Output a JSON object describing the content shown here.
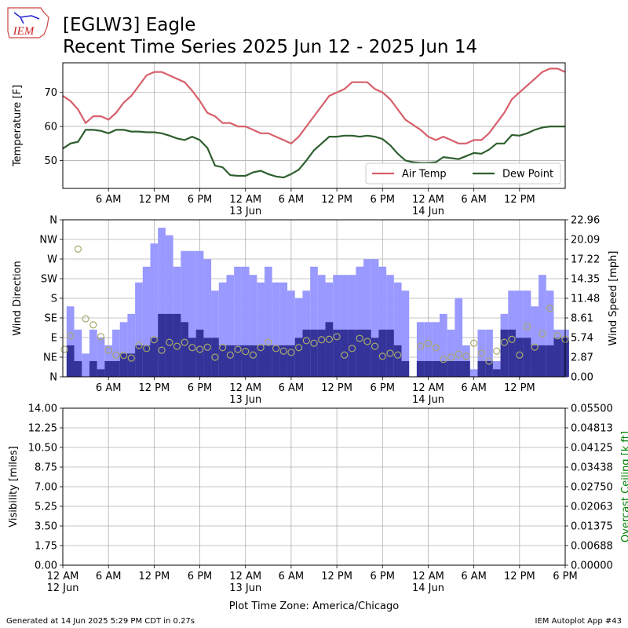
{
  "header": {
    "logo": "IEM",
    "title": "[EGLW3] Eagle",
    "subtitle": "Recent Time Series 2025 Jun 12 - 2025 Jun 14"
  },
  "chart_data": [
    {
      "type": "line",
      "ylabel": "Temperature [F]",
      "xlim": [
        0,
        66
      ],
      "xticks": [
        {
          "value": 6,
          "label": "6 AM"
        },
        {
          "value": 12,
          "label": "12 PM"
        },
        {
          "value": 18,
          "label": "6 PM"
        },
        {
          "value": 24,
          "label": "12 AM\n13 Jun"
        },
        {
          "value": 30,
          "label": "6 AM"
        },
        {
          "value": 36,
          "label": "12 PM"
        },
        {
          "value": 42,
          "label": "6 PM"
        },
        {
          "value": 48,
          "label": "12 AM\n14 Jun"
        },
        {
          "value": 54,
          "label": "6 AM"
        },
        {
          "value": 60,
          "label": "12 PM"
        }
      ],
      "ylim": [
        41.8,
        78.7
      ],
      "yticks": [
        50,
        60,
        70
      ],
      "grid": true,
      "legend": "lower right",
      "x": [
        0,
        1,
        2,
        3,
        4,
        5,
        6,
        7,
        8,
        9,
        10,
        11,
        12,
        13,
        14,
        15,
        16,
        17,
        18,
        19,
        20,
        21,
        22,
        23,
        24,
        25,
        26,
        27,
        28,
        29,
        30,
        31,
        32,
        33,
        34,
        35,
        36,
        37,
        38,
        39,
        40,
        41,
        42,
        43,
        44,
        45,
        46,
        47,
        48,
        49,
        50,
        51,
        52,
        53,
        54,
        55,
        56,
        57,
        58,
        59,
        60,
        61,
        62,
        63,
        64,
        65,
        66
      ],
      "series": [
        {
          "name": "Air Temp",
          "color": "#d6606b",
          "values": [
            69,
            67.5,
            65,
            61,
            63,
            63,
            62,
            64,
            67,
            69,
            72,
            75,
            76,
            76,
            75,
            74,
            73,
            70.5,
            67.5,
            64,
            63,
            61,
            61,
            60,
            60,
            59,
            58,
            58,
            57,
            56,
            55,
            57,
            60,
            63,
            66,
            69,
            70,
            71,
            73,
            73,
            73,
            71,
            70,
            68,
            65,
            62,
            60.5,
            59,
            57,
            56,
            57,
            56,
            55,
            55,
            56,
            56,
            58,
            61,
            64,
            68,
            70,
            72,
            74,
            76,
            77,
            77,
            76
          ]
        },
        {
          "name": "Dew Point",
          "color": "#2f5f2f",
          "values": [
            53.5,
            55,
            55.5,
            59,
            59,
            58.7,
            58,
            59,
            59,
            58.5,
            58.5,
            58.3,
            58.3,
            58,
            57.3,
            56.5,
            56,
            57,
            56,
            53.7,
            48.5,
            48,
            45.7,
            45.5,
            45.5,
            46.5,
            47,
            46,
            45.3,
            45,
            46,
            47.3,
            50,
            53,
            55,
            57,
            57,
            57.3,
            57.3,
            57,
            57.3,
            57,
            56.3,
            54.5,
            52,
            50,
            49.5,
            49.3,
            49.3,
            49.5,
            51,
            50.7,
            50.4,
            51.3,
            52.2,
            52,
            53.2,
            55,
            55,
            57.5,
            57.3,
            58,
            59,
            59.7,
            60,
            60,
            60
          ]
        }
      ]
    },
    {
      "type": "bar",
      "ylabel": "Wind Direction",
      "y2label": "Wind Speed [mph]",
      "xlim": [
        0,
        66
      ],
      "xticks": [
        {
          "value": 6,
          "label": "6 AM"
        },
        {
          "value": 12,
          "label": "12 PM"
        },
        {
          "value": 18,
          "label": "6 PM"
        },
        {
          "value": 24,
          "label": "12 AM\n13 Jun"
        },
        {
          "value": 30,
          "label": "6 AM"
        },
        {
          "value": 36,
          "label": "12 PM"
        },
        {
          "value": 42,
          "label": "6 PM"
        },
        {
          "value": 48,
          "label": "12 AM\n14 Jun"
        },
        {
          "value": 54,
          "label": "6 AM"
        },
        {
          "value": 60,
          "label": "12 PM"
        }
      ],
      "ylim": [
        0,
        360
      ],
      "yticks": [
        {
          "value": 0,
          "label": "N"
        },
        {
          "value": 45,
          "label": "NE"
        },
        {
          "value": 90,
          "label": "E"
        },
        {
          "value": 135,
          "label": "SE"
        },
        {
          "value": 180,
          "label": "S"
        },
        {
          "value": 225,
          "label": "SW"
        },
        {
          "value": 270,
          "label": "W"
        },
        {
          "value": 315,
          "label": "NW"
        },
        {
          "value": 360,
          "label": "N"
        }
      ],
      "y2lim": [
        0,
        22.96
      ],
      "y2ticks": [
        {
          "value": 0,
          "label": "0.00"
        },
        2.87,
        5.74,
        8.61,
        11.48,
        14.35,
        17.22,
        20.09,
        22.96
      ],
      "grid": true,
      "x": [
        1,
        2,
        3,
        4,
        5,
        6,
        7,
        8,
        9,
        10,
        11,
        12,
        13,
        14,
        15,
        16,
        17,
        18,
        19,
        20,
        21,
        22,
        23,
        24,
        25,
        26,
        27,
        28,
        29,
        30,
        31,
        32,
        33,
        34,
        35,
        36,
        37,
        38,
        39,
        40,
        41,
        42,
        43,
        44,
        45,
        46,
        47,
        48,
        49,
        50,
        51,
        52,
        53,
        54,
        55,
        56,
        57,
        58,
        59,
        60,
        61,
        62,
        63,
        64,
        65,
        66
      ],
      "series": [
        {
          "type": "bar",
          "axis": "y2",
          "color": "#9999ff",
          "values": [
            10.3,
            6.9,
            3.4,
            6.9,
            5.7,
            4.6,
            6.9,
            8.0,
            9.2,
            13.8,
            16.1,
            19.5,
            21.8,
            20.7,
            16.1,
            18.4,
            18.4,
            18.4,
            17.2,
            12.6,
            13.8,
            14.9,
            16.1,
            16.1,
            14.9,
            13.8,
            16.1,
            13.8,
            13.8,
            12.6,
            11.5,
            12.6,
            16.1,
            14.9,
            13.8,
            14.9,
            14.9,
            14.9,
            16.1,
            17.2,
            17.2,
            16.1,
            14.9,
            13.8,
            12.6,
            null,
            8.0,
            8.0,
            8.0,
            9.2,
            6.9,
            11.5,
            4.6,
            1.1,
            6.9,
            6.9,
            2.3,
            9.2,
            12.6,
            12.6,
            12.6,
            10.3,
            14.9,
            12.6,
            6.9,
            6.9
          ]
        },
        {
          "type": "bar",
          "axis": "y2",
          "color": "#333399",
          "values": [
            4.6,
            2.3,
            0,
            2.3,
            1.1,
            2.3,
            2.3,
            3.4,
            3.4,
            4.6,
            4.6,
            5.7,
            9.2,
            9.2,
            9.2,
            8.0,
            5.7,
            6.9,
            5.7,
            5.7,
            4.6,
            4.6,
            4.6,
            4.6,
            4.6,
            4.6,
            4.6,
            4.6,
            4.6,
            4.6,
            5.7,
            6.9,
            6.9,
            6.9,
            8.0,
            6.9,
            6.9,
            6.9,
            6.9,
            6.9,
            5.7,
            6.9,
            6.9,
            4.6,
            2.3,
            null,
            2.3,
            2.3,
            2.3,
            2.3,
            2.3,
            2.3,
            2.3,
            0,
            2.3,
            2.3,
            1.1,
            6.9,
            6.9,
            5.7,
            5.7,
            4.6,
            4.6,
            4.6,
            5.7,
            5.7
          ]
        },
        {
          "type": "scatter",
          "color": "#a8a86c",
          "x": [
            0.2,
            1,
            2,
            3,
            4,
            5,
            6,
            7,
            8,
            9,
            10,
            11,
            12,
            13,
            14,
            15,
            16,
            17,
            18,
            19,
            20,
            21,
            22,
            23,
            24,
            25,
            26,
            27,
            28,
            29,
            30,
            31,
            32,
            33,
            34,
            35,
            36,
            37,
            38,
            39,
            40,
            41,
            42,
            43,
            44,
            47,
            48,
            49,
            50,
            51,
            52,
            53,
            54,
            55,
            56,
            57,
            58,
            59,
            60,
            61,
            62,
            63,
            64,
            65,
            66
          ],
          "values": [
            63,
            94,
            293,
            133,
            119,
            92,
            61,
            50,
            49,
            43,
            72,
            65,
            85,
            61,
            79,
            70,
            79,
            67,
            63,
            68,
            45,
            67,
            50,
            63,
            58,
            50,
            67,
            79,
            65,
            59,
            56,
            67,
            83,
            77,
            85,
            86,
            92,
            50,
            65,
            88,
            81,
            70,
            47,
            54,
            50,
            70,
            77,
            67,
            40,
            45,
            52,
            47,
            77,
            54,
            36,
            59,
            79,
            86,
            50,
            115,
            68,
            99,
            157,
            94,
            86
          ]
        }
      ]
    },
    {
      "type": "line",
      "ylabel": "Visibility [miles]",
      "y2label": "Overcast Ceiling [k ft]",
      "y2label_color": "#008000",
      "xlabel": "Plot Time Zone: America/Chicago",
      "xlim": [
        0,
        66
      ],
      "xticks": [
        {
          "value": 0,
          "label": "12 AM\n12 Jun"
        },
        {
          "value": 6,
          "label": "6 AM"
        },
        {
          "value": 12,
          "label": "12 PM"
        },
        {
          "value": 18,
          "label": "6 PM"
        },
        {
          "value": 24,
          "label": "12 AM\n13 Jun"
        },
        {
          "value": 30,
          "label": "6 AM"
        },
        {
          "value": 36,
          "label": "12 PM"
        },
        {
          "value": 42,
          "label": "6 PM"
        },
        {
          "value": 48,
          "label": "12 AM\n14 Jun"
        },
        {
          "value": 54,
          "label": "6 AM"
        },
        {
          "value": 60,
          "label": "12 PM"
        },
        {
          "value": 66,
          "label": "6 PM"
        }
      ],
      "ylim": [
        0,
        14
      ],
      "yticks": [
        {
          "value": 0,
          "label": "0.00"
        },
        1.75,
        {
          "value": 3.5,
          "label": "3.50"
        },
        5.25,
        {
          "value": 7,
          "label": "7.00"
        },
        8.75,
        {
          "value": 10.5,
          "label": "10.50"
        },
        12.25,
        {
          "value": 14,
          "label": "14.00"
        }
      ],
      "y2lim": [
        0,
        0.055
      ],
      "y2ticks": [
        {
          "value": 0,
          "label": "0.00000"
        },
        {
          "value": 0.006875,
          "label": "0.00688"
        },
        {
          "value": 0.01375,
          "label": "0.01375"
        },
        {
          "value": 0.020625,
          "label": "0.02063"
        },
        {
          "value": 0.0275,
          "label": "0.02750"
        },
        {
          "value": 0.034375,
          "label": "0.03438"
        },
        {
          "value": 0.04125,
          "label": "0.04125"
        },
        {
          "value": 0.048125,
          "label": "0.04813"
        },
        {
          "value": 0.055,
          "label": "0.05500"
        }
      ],
      "grid": true,
      "x": [],
      "series": []
    }
  ],
  "footer": {
    "generated": "Generated at 14 Jun 2025 5:29 PM CDT in 0.27s",
    "app": "IEM Autoplot App #43"
  }
}
